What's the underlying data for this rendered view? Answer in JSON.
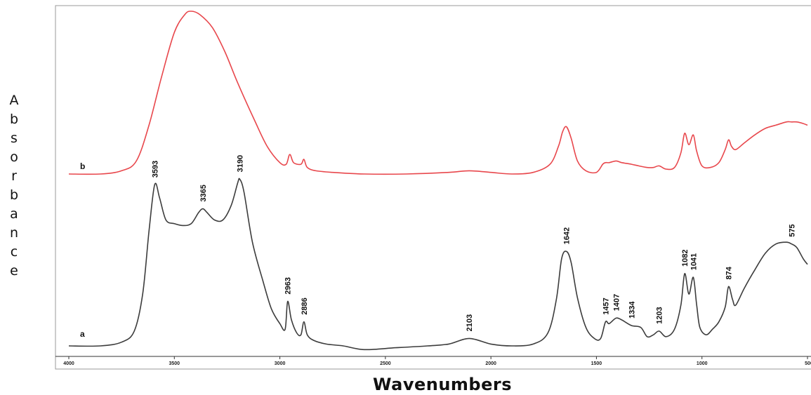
{
  "chart_data": {
    "type": "line",
    "xlabel": "Wavenumbers",
    "ylabel": "Absorbance",
    "xlim": [
      4000,
      500
    ],
    "x_reversed": true,
    "x_ticks": [
      "4000",
      "3500",
      "3000",
      "2500",
      "2000",
      "1500",
      "1000",
      "500"
    ],
    "series": [
      {
        "name": "b",
        "color": "#e8474c",
        "x": [
          4000,
          3850,
          3750,
          3680,
          3620,
          3560,
          3500,
          3450,
          3420,
          3380,
          3320,
          3260,
          3200,
          3120,
          3060,
          3000,
          2970,
          2953,
          2935,
          2900,
          2886,
          2870,
          2830,
          2750,
          2600,
          2400,
          2200,
          2103,
          2000,
          1900,
          1800,
          1720,
          1680,
          1660,
          1642,
          1620,
          1590,
          1550,
          1500,
          1470,
          1457,
          1440,
          1407,
          1380,
          1334,
          1300,
          1260,
          1230,
          1203,
          1170,
          1130,
          1100,
          1082,
          1062,
          1041,
          1025,
          1000,
          960,
          920,
          890,
          874,
          860,
          840,
          800,
          750,
          700,
          650,
          600,
          575,
          550,
          520,
          500
        ],
        "y": [
          0.0,
          0.0,
          0.02,
          0.08,
          0.3,
          0.6,
          0.87,
          0.98,
          1.0,
          0.98,
          0.9,
          0.75,
          0.56,
          0.33,
          0.17,
          0.07,
          0.06,
          0.12,
          0.07,
          0.06,
          0.09,
          0.04,
          0.02,
          0.01,
          0.0,
          0.0,
          0.01,
          0.02,
          0.01,
          0.0,
          0.01,
          0.06,
          0.17,
          0.26,
          0.29,
          0.22,
          0.08,
          0.02,
          0.01,
          0.06,
          0.07,
          0.07,
          0.08,
          0.07,
          0.06,
          0.05,
          0.04,
          0.04,
          0.05,
          0.03,
          0.04,
          0.13,
          0.25,
          0.18,
          0.24,
          0.14,
          0.05,
          0.04,
          0.07,
          0.15,
          0.21,
          0.17,
          0.15,
          0.19,
          0.24,
          0.28,
          0.3,
          0.32,
          0.32,
          0.32,
          0.31,
          0.3
        ]
      },
      {
        "name": "a",
        "color": "#3c3c3c",
        "x": [
          4000,
          3850,
          3750,
          3690,
          3650,
          3620,
          3593,
          3570,
          3540,
          3500,
          3460,
          3420,
          3385,
          3365,
          3345,
          3310,
          3270,
          3230,
          3200,
          3190,
          3170,
          3130,
          3080,
          3040,
          3000,
          2975,
          2963,
          2945,
          2920,
          2900,
          2886,
          2870,
          2840,
          2780,
          2700,
          2600,
          2450,
          2300,
          2200,
          2103,
          2000,
          1900,
          1800,
          1730,
          1690,
          1665,
          1642,
          1620,
          1590,
          1550,
          1510,
          1480,
          1457,
          1440,
          1407,
          1380,
          1334,
          1290,
          1260,
          1230,
          1203,
          1170,
          1130,
          1100,
          1082,
          1062,
          1041,
          1025,
          1010,
          980,
          950,
          920,
          890,
          874,
          855,
          840,
          800,
          750,
          700,
          650,
          600,
          575,
          550,
          520,
          500
        ],
        "y": [
          0.0,
          0.0,
          0.02,
          0.08,
          0.28,
          0.62,
          0.87,
          0.8,
          0.68,
          0.66,
          0.65,
          0.66,
          0.72,
          0.74,
          0.72,
          0.68,
          0.68,
          0.76,
          0.88,
          0.9,
          0.83,
          0.56,
          0.35,
          0.2,
          0.12,
          0.09,
          0.24,
          0.14,
          0.07,
          0.06,
          0.13,
          0.06,
          0.03,
          0.01,
          0.0,
          -0.02,
          -0.01,
          0.0,
          0.01,
          0.04,
          0.01,
          0.0,
          0.01,
          0.07,
          0.25,
          0.47,
          0.51,
          0.45,
          0.26,
          0.1,
          0.04,
          0.04,
          0.13,
          0.12,
          0.15,
          0.14,
          0.11,
          0.1,
          0.05,
          0.06,
          0.08,
          0.05,
          0.09,
          0.22,
          0.39,
          0.28,
          0.37,
          0.22,
          0.1,
          0.06,
          0.09,
          0.13,
          0.21,
          0.32,
          0.25,
          0.22,
          0.31,
          0.41,
          0.5,
          0.55,
          0.56,
          0.55,
          0.53,
          0.47,
          0.44
        ]
      }
    ],
    "series_labels": [
      "b",
      "a"
    ],
    "peak_labels": [
      {
        "x": 3593,
        "label": "3593"
      },
      {
        "x": 3365,
        "label": "3365"
      },
      {
        "x": 3190,
        "label": "3190"
      },
      {
        "x": 2963,
        "label": "2963"
      },
      {
        "x": 2886,
        "label": "2886"
      },
      {
        "x": 2103,
        "label": "2103"
      },
      {
        "x": 1642,
        "label": "1642"
      },
      {
        "x": 1457,
        "label": "1457"
      },
      {
        "x": 1407,
        "label": "1407"
      },
      {
        "x": 1334,
        "label": "1334"
      },
      {
        "x": 1203,
        "label": "1203"
      },
      {
        "x": 1082,
        "label": "1082"
      },
      {
        "x": 1041,
        "label": "1041"
      },
      {
        "x": 874,
        "label": "874"
      },
      {
        "x": 575,
        "label": "575"
      }
    ],
    "grid": false,
    "legend": "none"
  }
}
